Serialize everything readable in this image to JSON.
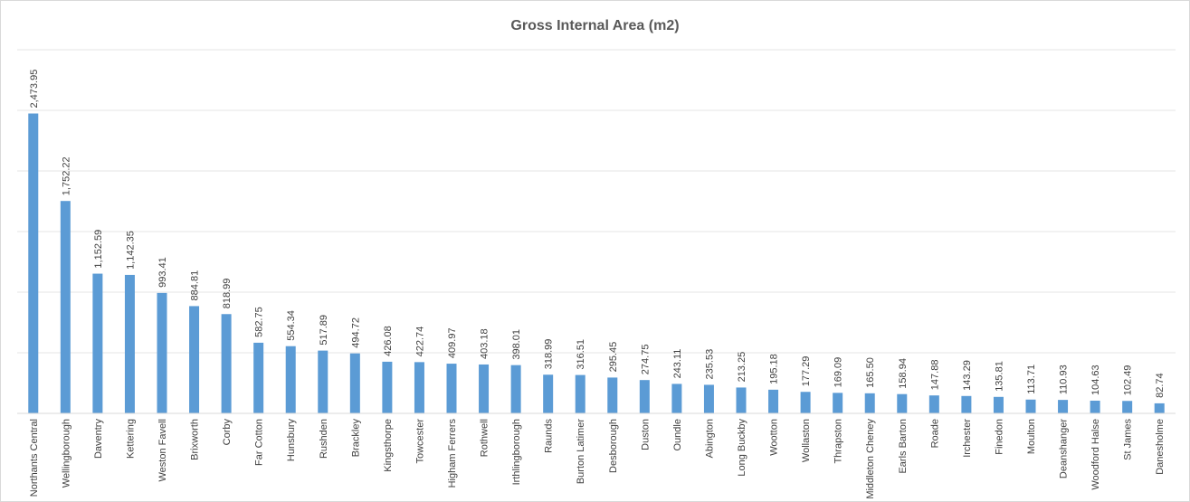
{
  "chart_data": {
    "type": "bar",
    "title": "Gross Internal Area (m2)",
    "xlabel": "",
    "ylabel": "",
    "ylim": [
      0,
      3000
    ],
    "grid": true,
    "legend": "none",
    "bar_color": "#5b9bd5",
    "categories": [
      "Northants Central",
      "Wellingborough",
      "Daventry",
      "Kettering",
      "Weston Favell",
      "Brixworth",
      "Corby",
      "Far Cotton",
      "Hunsbury",
      "Rushden",
      "Brackley",
      "Kingsthorpe",
      "Towcester",
      "Higham Ferrers",
      "Rothwell",
      "Irthlingborough",
      "Raunds",
      "Burton Latimer",
      "Desborough",
      "Duston",
      "Oundle",
      "Abington",
      "Long Buckby",
      "Wootton",
      "Wollaston",
      "Thrapston",
      "Middleton Cheney",
      "Earls Barton",
      "Roade",
      "Irchester",
      "Finedon",
      "Moulton",
      "Deanshanger",
      "Woodford Halse",
      "St James",
      "Danesholme"
    ],
    "values": [
      2473.95,
      1752.22,
      1152.59,
      1142.35,
      993.41,
      884.81,
      818.99,
      582.75,
      554.34,
      517.89,
      494.72,
      426.08,
      422.74,
      409.97,
      403.18,
      398.01,
      318.99,
      316.51,
      295.45,
      274.75,
      243.11,
      235.53,
      213.25,
      195.18,
      177.29,
      169.09,
      165.5,
      158.94,
      147.88,
      143.29,
      135.81,
      113.71,
      110.93,
      104.63,
      102.49,
      82.74
    ],
    "value_labels": [
      "2,473.95",
      "1,752.22",
      "1,152.59",
      "1,142.35",
      "993.41",
      "884.81",
      "818.99",
      "582.75",
      "554.34",
      "517.89",
      "494.72",
      "426.08",
      "422.74",
      "409.97",
      "403.18",
      "398.01",
      "318.99",
      "316.51",
      "295.45",
      "274.75",
      "243.11",
      "235.53",
      "213.25",
      "195.18",
      "177.29",
      "169.09",
      "165.50",
      "158.94",
      "147.88",
      "143.29",
      "135.81",
      "113.71",
      "110.93",
      "104.63",
      "102.49",
      "82.74"
    ]
  }
}
